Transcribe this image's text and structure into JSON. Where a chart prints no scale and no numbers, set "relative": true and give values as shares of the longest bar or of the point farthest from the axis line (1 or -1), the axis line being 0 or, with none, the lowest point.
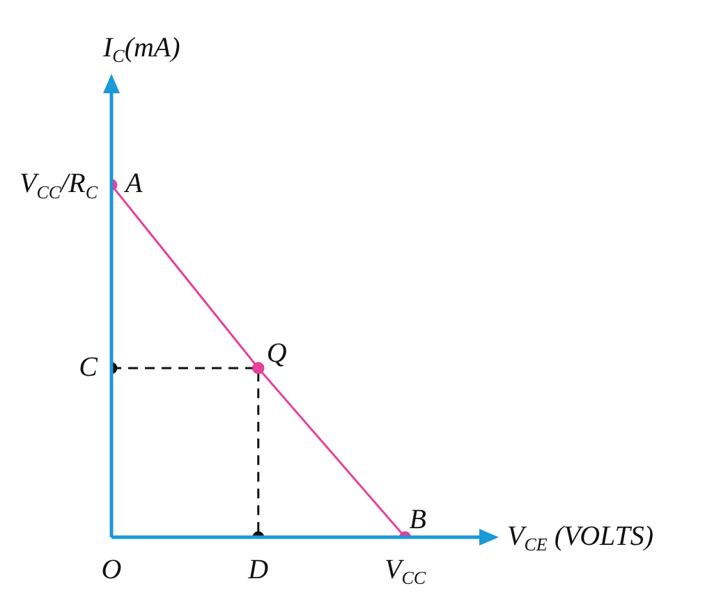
{
  "chart_data": {
    "type": "line",
    "relative": true,
    "xlabel": "V$_{CE}$ (VOLTS)",
    "ylabel": "I$_{C}$(mA)",
    "categories": [
      "O",
      "D",
      "V$_{CC}$"
    ],
    "series": [
      {
        "color": "#e8409a",
        "values": [
          1,
          0.48,
          0
        ],
        "marker": "circle",
        "line_style": "solid"
      },
      {
        "color": "#111111",
        "x": [
          "O",
          "D",
          "D"
        ],
        "values": [
          0.48,
          0.48,
          0
        ],
        "marker": "circle",
        "line_style": "dashed"
      }
    ],
    "annotations": [
      {
        "text": "A",
        "x": "O",
        "y": 1
      },
      {
        "text": "V$_{CC}$/R$_{C}$",
        "x": "O",
        "y": 1
      },
      {
        "text": "Q",
        "x": "D",
        "y": 0.48
      },
      {
        "text": "C",
        "x": "O",
        "y": 0.48
      },
      {
        "text": "B",
        "x": "V$_{CC}$",
        "y": 0
      }
    ]
  }
}
